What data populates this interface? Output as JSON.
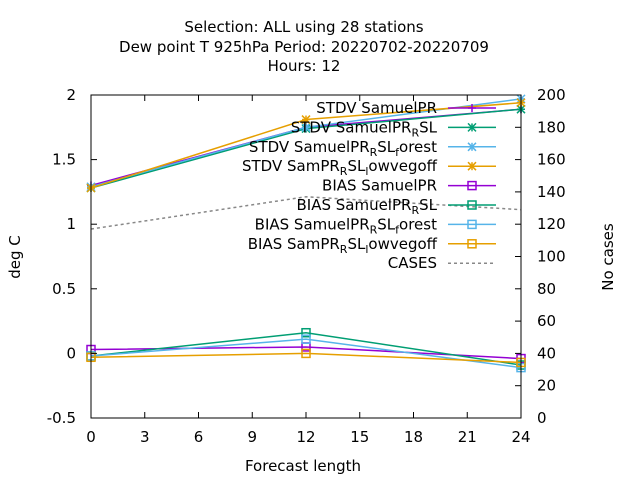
{
  "chart_data": {
    "type": "line",
    "title_lines": [
      "Selection: ALL using    28 stations",
      "Dew point T 925hPa   Period: 20220702-20220709",
      "Hours:  12"
    ],
    "xlabel": "Forecast length",
    "ylabel": "deg C",
    "y2label": "No cases",
    "x_ticks": [
      "0",
      "3",
      "6",
      "9",
      "12",
      "15",
      "18",
      "21",
      "24"
    ],
    "y_ticks": [
      "-0.5",
      "0",
      "0.5",
      "1",
      "1.5",
      "2"
    ],
    "y2_ticks": [
      "0",
      "20",
      "40",
      "60",
      "80",
      "100",
      "120",
      "140",
      "160",
      "180",
      "200"
    ],
    "xlim": [
      0,
      24
    ],
    "ylim": [
      -0.5,
      2
    ],
    "y2lim": [
      0,
      200
    ],
    "legend_position": "top-right",
    "x": [
      0,
      12,
      24
    ],
    "series": [
      {
        "name": "STDV SamuelPR",
        "legend": [
          "STDV SamuelPR"
        ],
        "color": "#9400d3",
        "marker": "plus",
        "dashed": false,
        "axis": "y",
        "values": [
          1.3,
          1.75,
          1.89
        ]
      },
      {
        "name": "STDV SamuelPR_RSL",
        "legend": [
          "STDV SamuelPR",
          "R",
          "SL"
        ],
        "color": "#009e73",
        "marker": "star",
        "dashed": false,
        "axis": "y",
        "values": [
          1.28,
          1.74,
          1.89
        ]
      },
      {
        "name": "STDV SamuelPR_RSL_forest",
        "legend": [
          "STDV SamuelPR",
          "R",
          "SL",
          "f",
          "orest"
        ],
        "color": "#56b4e9",
        "marker": "star",
        "dashed": false,
        "axis": "y",
        "values": [
          1.29,
          1.75,
          1.97
        ]
      },
      {
        "name": "STDV SamPR_RSL_lowvegoff",
        "legend": [
          "STDV SamPR",
          "R",
          "SL",
          "l",
          "owvegoff"
        ],
        "color": "#e69f00",
        "marker": "star",
        "dashed": false,
        "axis": "y",
        "values": [
          1.28,
          1.81,
          1.94
        ]
      },
      {
        "name": "BIAS SamuelPR",
        "legend": [
          "BIAS SamuelPR"
        ],
        "color": "#9400d3",
        "marker": "square",
        "dashed": false,
        "axis": "y",
        "values": [
          0.03,
          0.05,
          -0.04
        ]
      },
      {
        "name": "BIAS SamuelPR_RSL",
        "legend": [
          "BIAS SamuelPR",
          "R",
          "SL"
        ],
        "color": "#009e73",
        "marker": "square",
        "dashed": false,
        "axis": "y",
        "values": [
          -0.02,
          0.16,
          -0.09
        ]
      },
      {
        "name": "BIAS SamuelPR_RSL_forest",
        "legend": [
          "BIAS SamuelPR",
          "R",
          "SL",
          "f",
          "orest"
        ],
        "color": "#56b4e9",
        "marker": "square",
        "dashed": false,
        "axis": "y",
        "values": [
          -0.02,
          0.11,
          -0.11
        ]
      },
      {
        "name": "BIAS SamPR_RSL_lowvegoff",
        "legend": [
          "BIAS SamPR",
          "R",
          "SL",
          "l",
          "owvegoff"
        ],
        "color": "#e69f00",
        "marker": "square",
        "dashed": false,
        "axis": "y",
        "values": [
          -0.03,
          0.0,
          -0.07
        ]
      },
      {
        "name": "CASES",
        "legend": [
          "CASES"
        ],
        "color": "#888888",
        "marker": "none",
        "dashed": true,
        "axis": "y2",
        "values": [
          117,
          137,
          129
        ]
      }
    ]
  }
}
